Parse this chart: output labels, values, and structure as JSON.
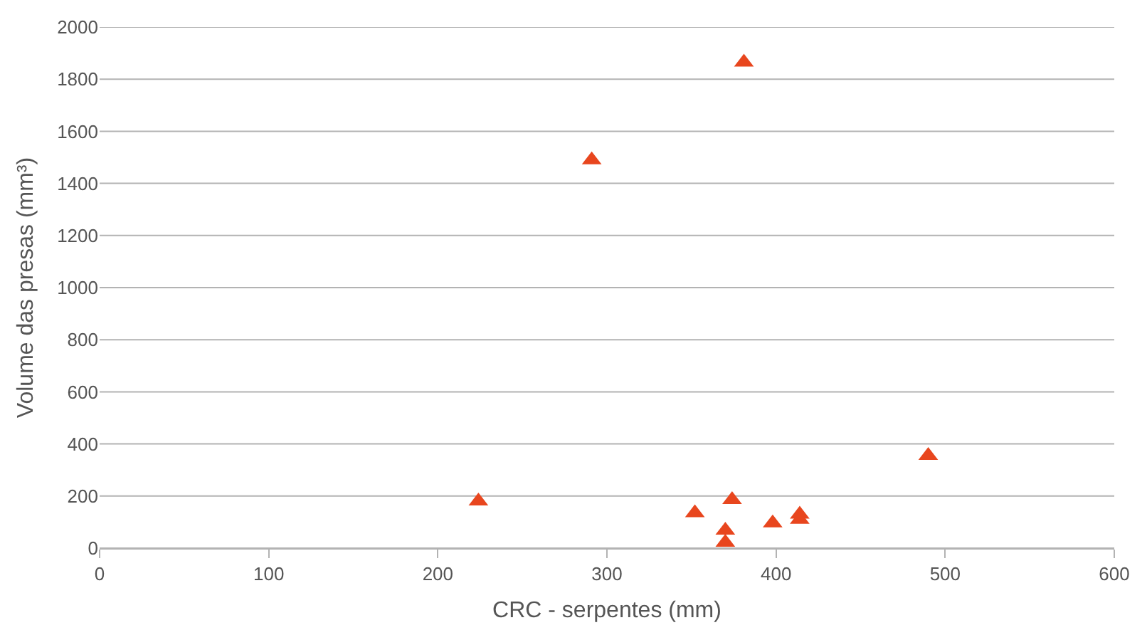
{
  "chart_data": {
    "type": "scatter",
    "xlabel": "CRC - serpentes (mm)",
    "ylabel": "Volume das presas (mm³)",
    "x": [
      224,
      291,
      381,
      352,
      374,
      370,
      370,
      398,
      414,
      414,
      490
    ],
    "series": [
      {
        "color": "#e8461e",
        "values": [
          180,
          1490,
          1865,
          135,
          186,
          68,
          22,
          96,
          130,
          110,
          355
        ]
      }
    ],
    "xlim": [
      0,
      600
    ],
    "xticks": [
      0,
      100,
      200,
      300,
      400,
      500,
      600
    ],
    "ylim": [
      0,
      2000
    ],
    "yticks": [
      0,
      200,
      400,
      600,
      800,
      1000,
      1200,
      1400,
      1600,
      1800,
      2000
    ],
    "grid": "y",
    "marker": "triangle"
  }
}
